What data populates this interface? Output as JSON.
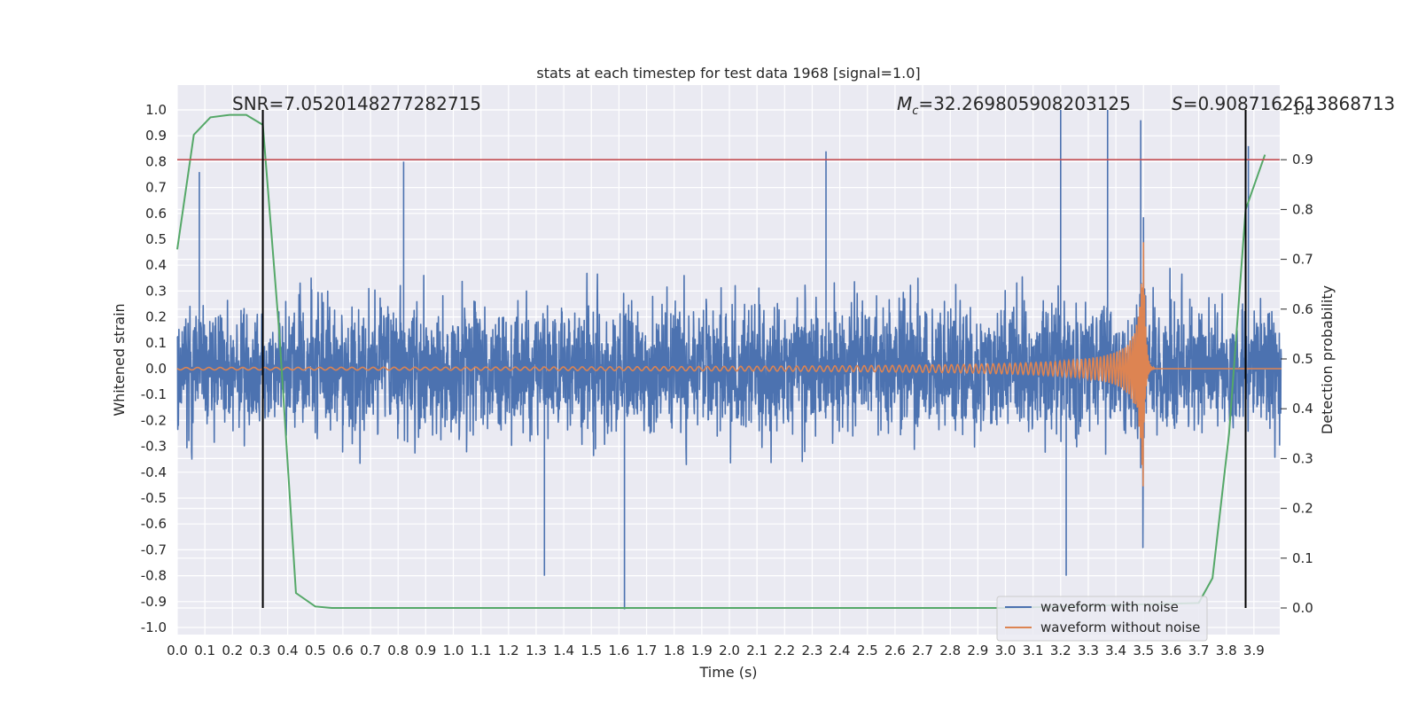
{
  "chart_data": {
    "type": "line",
    "title": "stats at each timestep for test data 1968 [signal=1.0]",
    "xlabel": "Time (s)",
    "ylabel": "Whitened strain",
    "ylabel_right": "Detection probability",
    "xlim": [
      0.0,
      4.0
    ],
    "ylim": [
      -1.05,
      1.1
    ],
    "ylim_right": [
      -0.05,
      1.0
    ],
    "x_ticks": [
      "0.0",
      "0.1",
      "0.2",
      "0.3",
      "0.4",
      "0.5",
      "0.6",
      "0.7",
      "0.8",
      "0.9",
      "1.0",
      "1.1",
      "1.2",
      "1.3",
      "1.4",
      "1.5",
      "1.6",
      "1.7",
      "1.8",
      "1.9",
      "2.0",
      "2.1",
      "2.2",
      "2.3",
      "2.4",
      "2.5",
      "2.6",
      "2.7",
      "2.8",
      "2.9",
      "3.0",
      "3.1",
      "3.2",
      "3.3",
      "3.4",
      "3.5",
      "3.6",
      "3.7",
      "3.8",
      "3.9"
    ],
    "y_ticks": [
      "1.0",
      "0.9",
      "0.8",
      "0.7",
      "0.6",
      "0.5",
      "0.4",
      "0.3",
      "0.2",
      "0.1",
      "0.0",
      "-0.1",
      "-0.2",
      "-0.3",
      "-0.4",
      "-0.5",
      "-0.6",
      "-0.7",
      "-0.8",
      "-0.9",
      "-1.0"
    ],
    "y_ticks_right": [
      "1.0",
      "0.9",
      "0.8",
      "0.7",
      "0.6",
      "0.5",
      "0.4",
      "0.3",
      "0.2",
      "0.1",
      "0.0"
    ],
    "grid": true,
    "legend_position": "bottom-right",
    "annotations": {
      "snr": "SNR=7.0520148277282715",
      "mc_symbol": "M",
      "mc_sub": "c",
      "mc_value": "=32.269805908203125",
      "s_symbol": "S",
      "s_value": "=0.9087162613868713"
    },
    "vertical_lines_x": [
      0.31,
      3.87
    ],
    "threshold_line": {
      "axis": "right",
      "y": 0.9,
      "color": "#c44e52"
    },
    "series": [
      {
        "name": "waveform with noise",
        "color": "#4c72b0",
        "description_kind": "noise",
        "x_range": [
          0.0,
          4.0
        ],
        "envelope_max": 1.0,
        "envelope_min": -0.93,
        "notable_peaks": [
          [
            0.08,
            0.76
          ],
          [
            0.82,
            0.8
          ],
          [
            2.35,
            0.84
          ],
          [
            3.2,
            1.0
          ],
          [
            3.37,
            1.0
          ],
          [
            3.49,
            0.96
          ],
          [
            3.88,
            0.86
          ],
          [
            1.62,
            -0.93
          ],
          [
            1.33,
            -0.8
          ],
          [
            3.22,
            -0.8
          ]
        ]
      },
      {
        "name": "waveform without noise",
        "color": "#dd8452",
        "description_kind": "chirp",
        "x_range": [
          0.0,
          4.0
        ],
        "merger_time": 3.5,
        "peak_amplitude": 0.5,
        "min_amplitude": -0.43
      },
      {
        "name": "",
        "axis": "right",
        "color": "#55a868",
        "x": [
          0.0,
          0.06,
          0.12,
          0.19,
          0.25,
          0.31,
          0.37,
          0.43,
          0.5,
          0.56,
          0.62,
          3.0,
          3.7,
          3.75,
          3.81,
          3.87,
          3.94
        ],
        "y": [
          0.72,
          0.95,
          0.985,
          0.99,
          0.99,
          0.97,
          0.55,
          0.03,
          0.003,
          0.0,
          0.0,
          0.0,
          0.01,
          0.06,
          0.35,
          0.8,
          0.91
        ]
      }
    ]
  }
}
